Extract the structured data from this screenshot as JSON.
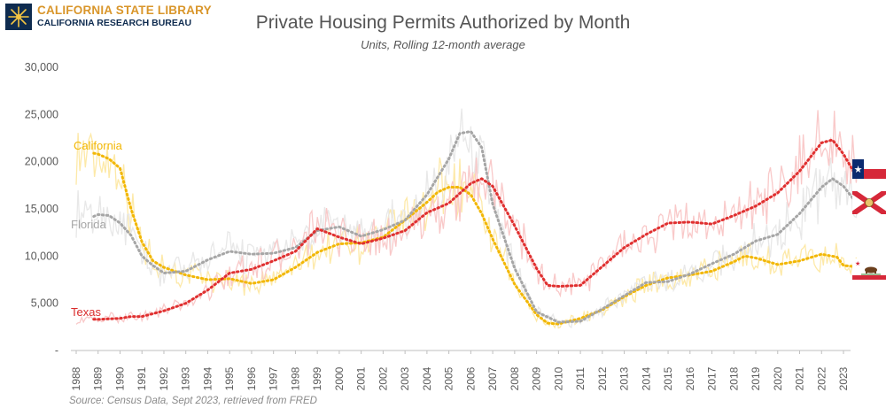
{
  "branding": {
    "org_line1": "CALIFORNIA STATE LIBRARY",
    "org_line2": "CALIFORNIA RESEARCH BUREAU"
  },
  "header": {
    "title": "Private Housing Permits Authorized by Month",
    "subtitle": "Units, Rolling 12-month average"
  },
  "footer": {
    "source": "Source: Census Data, Sept 2023, retrieved from FRED"
  },
  "chart_data": {
    "type": "line",
    "title": "Private Housing Permits Authorized by Month",
    "subtitle": "Units, Rolling 12-month average",
    "xlabel": "",
    "ylabel": "",
    "xlim": [
      1988,
      2023.7
    ],
    "ylim": [
      0,
      30000
    ],
    "y_ticks": [
      0,
      5000,
      10000,
      15000,
      20000,
      25000,
      30000
    ],
    "y_tick_labels": [
      "-",
      "5,000",
      "10,000",
      "15,000",
      "20,000",
      "25,000",
      "30,000"
    ],
    "x_ticks": [
      1988,
      1989,
      1990,
      1991,
      1992,
      1993,
      1994,
      1995,
      1996,
      1997,
      1998,
      1999,
      2000,
      2001,
      2002,
      2003,
      2004,
      2005,
      2006,
      2007,
      2008,
      2009,
      2010,
      2011,
      2012,
      2013,
      2014,
      2015,
      2016,
      2017,
      2018,
      2019,
      2020,
      2021,
      2022,
      2023
    ],
    "x_tick_labels": [
      "1988",
      "1989",
      "1990",
      "1991",
      "1992",
      "1993",
      "1994",
      "1995",
      "1996",
      "1997",
      "1998",
      "1999",
      "2000",
      "2001",
      "2002",
      "2003",
      "2004",
      "2005",
      "2006",
      "2007",
      "2008",
      "2009",
      "2010",
      "2011",
      "2012",
      "2013",
      "2014",
      "2015",
      "2016",
      "2017",
      "2018",
      "2019",
      "2020",
      "2021",
      "2022",
      "2023"
    ],
    "grid": false,
    "legend": "inline labels at left",
    "series": [
      {
        "name": "California",
        "color": "#f2b705",
        "raw_color": "#fde9a8",
        "x": [
          1988.8,
          1989,
          1989.5,
          1990,
          1990.5,
          1991,
          1991.5,
          1992,
          1993,
          1994,
          1995,
          1996,
          1997,
          1998,
          1999,
          2000,
          2001,
          2002,
          2003,
          2004,
          2004.5,
          2005,
          2005.5,
          2006,
          2006.5,
          2007,
          2008,
          2009,
          2009.5,
          2010,
          2011,
          2012,
          2013,
          2014,
          2015,
          2016,
          2017,
          2018,
          2018.5,
          2019,
          2020,
          2021,
          2022,
          2022.7,
          2023,
          2023.5
        ],
        "y": [
          20900,
          20800,
          20300,
          19300,
          15000,
          11500,
          9500,
          8800,
          8000,
          7500,
          7600,
          7100,
          7500,
          8800,
          10400,
          11300,
          11400,
          12000,
          13800,
          15700,
          16800,
          17300,
          17300,
          16500,
          14500,
          11800,
          7000,
          3800,
          2900,
          2800,
          3400,
          4300,
          5700,
          6900,
          7700,
          8000,
          8400,
          9400,
          10000,
          9800,
          9100,
          9500,
          10200,
          9900,
          9000,
          8900
        ]
      },
      {
        "name": "Florida",
        "color": "#a6a6a6",
        "raw_color": "#e8e8e8",
        "x": [
          1988.8,
          1989,
          1989.5,
          1990,
          1990.5,
          1991,
          1991.5,
          1992,
          1993,
          1994,
          1995,
          1996,
          1997,
          1998,
          1999,
          2000,
          2001,
          2002,
          2003,
          2004,
          2005,
          2005.5,
          2006,
          2006.5,
          2007,
          2008,
          2009,
          2010,
          2011,
          2012,
          2013,
          2014,
          2015,
          2016,
          2017,
          2018,
          2019,
          2020,
          2021,
          2022,
          2022.5,
          2023,
          2023.5
        ],
        "y": [
          14200,
          14400,
          14300,
          13500,
          12200,
          10000,
          9000,
          8200,
          8400,
          9600,
          10500,
          10200,
          10300,
          10900,
          12700,
          13100,
          12100,
          12800,
          13800,
          16500,
          20300,
          23000,
          23200,
          21500,
          15500,
          8700,
          4100,
          3000,
          3100,
          4400,
          5800,
          7200,
          7300,
          8100,
          9200,
          10200,
          11600,
          12300,
          14500,
          17300,
          18200,
          17400,
          15900
        ]
      },
      {
        "name": "Texas",
        "color": "#e03030",
        "raw_color": "#f9c9c9",
        "x": [
          1988.8,
          1989,
          1990,
          1990.5,
          1991,
          1991.5,
          1992,
          1993,
          1994,
          1995,
          1996,
          1997,
          1998,
          1999,
          2000,
          2001,
          2002,
          2003,
          2004,
          2005,
          2006,
          2006.5,
          2007,
          2008,
          2009,
          2009.5,
          2010,
          2011,
          2012,
          2013,
          2014,
          2015,
          2016,
          2017,
          2018,
          2019,
          2020,
          2021,
          2022,
          2022.5,
          2023,
          2023.5
        ],
        "y": [
          3300,
          3300,
          3400,
          3600,
          3600,
          3900,
          4200,
          5000,
          6400,
          8200,
          8600,
          9500,
          10500,
          12900,
          12000,
          11300,
          11900,
          12700,
          14600,
          15600,
          17700,
          18200,
          17400,
          13200,
          8700,
          6900,
          6800,
          6900,
          8900,
          10900,
          12300,
          13500,
          13600,
          13400,
          14300,
          15300,
          16700,
          19000,
          22000,
          22300,
          20800,
          18800
        ]
      }
    ],
    "annotations": [
      {
        "text": "California",
        "color": "#f2b705"
      },
      {
        "text": "Florida",
        "color": "#a6a6a6"
      },
      {
        "text": "Texas",
        "color": "#d92b2b"
      }
    ],
    "end_markers": [
      "texas-flag",
      "florida-flag",
      "california-flag"
    ]
  }
}
